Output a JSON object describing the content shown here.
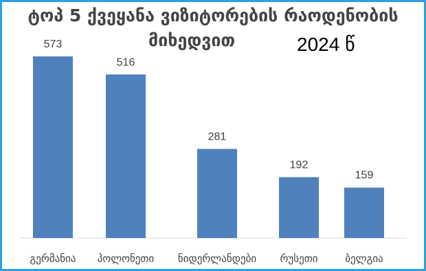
{
  "chart_data": {
    "type": "bar",
    "title_line1": "ტოპ 5 ქვეყანა ვიზიტორების რაოდენობის",
    "title_line2": "მიხედვით",
    "year_label": "2024 წ",
    "categories": [
      "გერმანია",
      "პოლონეთი",
      "ნიდერლანდები",
      "რუსეთი",
      "ბელგია"
    ],
    "values": [
      573,
      516,
      281,
      192,
      159
    ],
    "bar_color": "#4f81bd",
    "grid": false,
    "legend": "none"
  },
  "colors": {
    "border": "#2f9fe6",
    "bar": "#4f81bd"
  }
}
